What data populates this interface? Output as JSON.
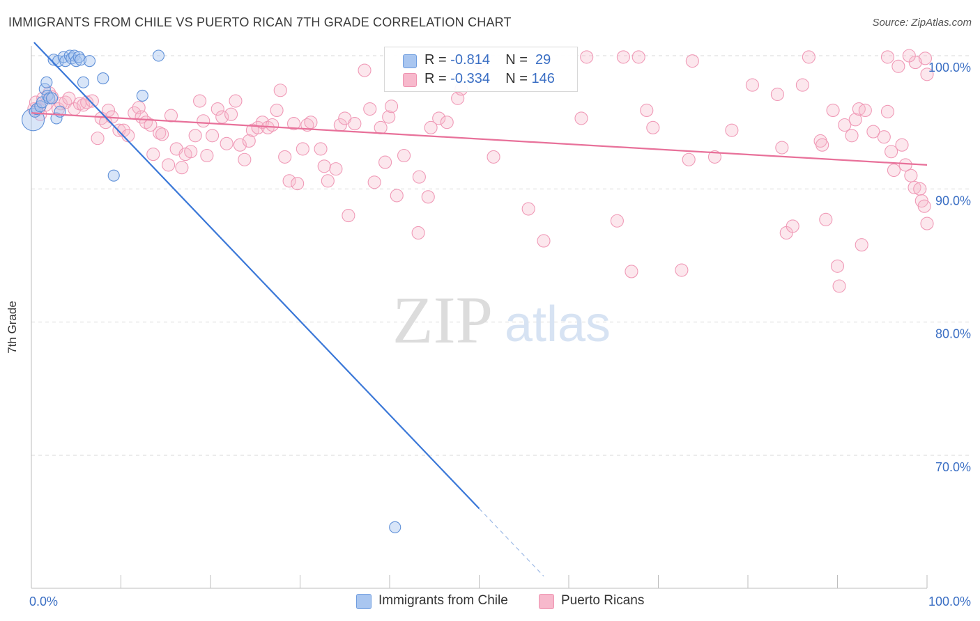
{
  "title": "IMMIGRANTS FROM CHILE VS PUERTO RICAN 7TH GRADE CORRELATION CHART",
  "source": "Source: ZipAtlas.com",
  "watermark": {
    "zip": "ZIP",
    "atlas": "atlas"
  },
  "legend": {
    "rows": [
      {
        "r_label": "R = ",
        "r_value": "-0.814",
        "n_label": "N = ",
        "n_value": "29",
        "color": "#a9c6f0"
      },
      {
        "r_label": "R = ",
        "r_value": "-0.334",
        "n_label": "N = ",
        "n_value": "146",
        "color": "#f7b9cc"
      }
    ]
  },
  "bottom_legend": [
    {
      "label": "Immigrants from Chile",
      "color": "#a9c6f0"
    },
    {
      "label": "Puerto Ricans",
      "color": "#f7b9cc"
    }
  ],
  "chart_data": {
    "type": "scatter",
    "ylabel": "7th Grade",
    "xlim": [
      0,
      100
    ],
    "ylim": [
      60.5,
      101.5
    ],
    "x_tick_labels": [
      "0.0%",
      "100.0%"
    ],
    "y_ticks": [
      70,
      80,
      90,
      100
    ],
    "y_tick_labels": [
      "70.0%",
      "80.0%",
      "90.0%",
      "100.0%"
    ],
    "grid": "horizontal dashed",
    "series": [
      {
        "name": "Immigrants from Chile",
        "color": "#7aa6e6",
        "line_color": "#3b78d8",
        "r": -0.814,
        "n": 29,
        "trend": {
          "x0": 0.3,
          "y0": 101.0,
          "x1": 50.0,
          "y1": 66.0,
          "dash_to_x": 57.2
        },
        "points": [
          [
            0.2,
            95.2
          ],
          [
            0.4,
            95.8
          ],
          [
            0.6,
            96.0
          ],
          [
            1.0,
            96.2
          ],
          [
            1.2,
            96.5
          ],
          [
            1.5,
            97.5
          ],
          [
            1.7,
            98.0
          ],
          [
            1.8,
            97.0
          ],
          [
            2.0,
            96.8
          ],
          [
            2.3,
            96.8
          ],
          [
            2.5,
            99.7
          ],
          [
            2.8,
            95.3
          ],
          [
            3.0,
            99.6
          ],
          [
            3.2,
            95.8
          ],
          [
            3.6,
            99.9
          ],
          [
            3.8,
            99.6
          ],
          [
            4.3,
            100.0
          ],
          [
            4.5,
            99.8
          ],
          [
            4.8,
            100.0
          ],
          [
            5.0,
            99.6
          ],
          [
            5.3,
            99.9
          ],
          [
            5.5,
            99.7
          ],
          [
            5.8,
            98.0
          ],
          [
            6.5,
            99.6
          ],
          [
            8.0,
            98.3
          ],
          [
            9.2,
            91.0
          ],
          [
            12.4,
            97.0
          ],
          [
            14.2,
            100.0
          ],
          [
            40.6,
            64.6
          ]
        ]
      },
      {
        "name": "Puerto Ricans",
        "color": "#f4a8bf",
        "line_color": "#e8719a",
        "r": -0.334,
        "n": 146,
        "trend": {
          "x0": 0.0,
          "y0": 95.7,
          "x1": 100.0,
          "y1": 91.8
        },
        "points": [
          [
            0.3,
            96.0
          ],
          [
            0.5,
            96.5
          ],
          [
            0.8,
            96.0
          ],
          [
            1.0,
            95.6
          ],
          [
            1.3,
            96.8
          ],
          [
            1.6,
            96.3
          ],
          [
            2.0,
            97.2
          ],
          [
            2.3,
            96.9
          ],
          [
            3.0,
            96.0
          ],
          [
            3.3,
            96.4
          ],
          [
            3.8,
            96.5
          ],
          [
            4.2,
            96.8
          ],
          [
            4.8,
            96.0
          ],
          [
            5.4,
            96.4
          ],
          [
            5.8,
            96.3
          ],
          [
            6.2,
            96.5
          ],
          [
            6.8,
            96.6
          ],
          [
            7.4,
            93.8
          ],
          [
            7.8,
            95.3
          ],
          [
            8.3,
            95.0
          ],
          [
            8.6,
            95.9
          ],
          [
            9.0,
            95.4
          ],
          [
            9.8,
            94.4
          ],
          [
            10.3,
            94.4
          ],
          [
            10.8,
            94.0
          ],
          [
            11.5,
            95.7
          ],
          [
            12.0,
            96.1
          ],
          [
            12.3,
            95.4
          ],
          [
            12.8,
            95.0
          ],
          [
            13.3,
            94.8
          ],
          [
            13.6,
            92.6
          ],
          [
            14.3,
            94.2
          ],
          [
            14.6,
            94.1
          ],
          [
            15.3,
            91.8
          ],
          [
            15.6,
            95.5
          ],
          [
            16.2,
            93.0
          ],
          [
            16.8,
            91.6
          ],
          [
            17.2,
            92.6
          ],
          [
            17.8,
            92.8
          ],
          [
            18.3,
            94.0
          ],
          [
            18.8,
            96.6
          ],
          [
            19.2,
            95.1
          ],
          [
            19.6,
            92.5
          ],
          [
            20.2,
            94.0
          ],
          [
            20.8,
            96.0
          ],
          [
            21.3,
            95.4
          ],
          [
            21.8,
            93.4
          ],
          [
            22.3,
            95.6
          ],
          [
            22.8,
            96.6
          ],
          [
            23.3,
            93.3
          ],
          [
            23.8,
            92.2
          ],
          [
            24.3,
            93.6
          ],
          [
            24.7,
            94.4
          ],
          [
            25.3,
            94.6
          ],
          [
            25.8,
            95.0
          ],
          [
            26.4,
            94.6
          ],
          [
            26.9,
            94.8
          ],
          [
            27.4,
            95.9
          ],
          [
            27.8,
            97.4
          ],
          [
            28.3,
            92.4
          ],
          [
            28.8,
            90.6
          ],
          [
            29.3,
            94.9
          ],
          [
            29.7,
            90.4
          ],
          [
            30.3,
            93.0
          ],
          [
            30.8,
            94.8
          ],
          [
            31.2,
            95.0
          ],
          [
            32.3,
            93.0
          ],
          [
            32.7,
            91.7
          ],
          [
            33.1,
            90.6
          ],
          [
            34.0,
            91.5
          ],
          [
            34.5,
            94.8
          ],
          [
            35.0,
            95.3
          ],
          [
            35.4,
            88.0
          ],
          [
            36.1,
            94.9
          ],
          [
            37.2,
            98.9
          ],
          [
            37.8,
            96.0
          ],
          [
            38.3,
            90.5
          ],
          [
            39.0,
            94.6
          ],
          [
            39.5,
            92.0
          ],
          [
            39.9,
            95.4
          ],
          [
            40.2,
            96.2
          ],
          [
            40.8,
            89.5
          ],
          [
            41.6,
            92.5
          ],
          [
            43.2,
            86.7
          ],
          [
            43.3,
            90.9
          ],
          [
            44.3,
            89.4
          ],
          [
            44.6,
            94.6
          ],
          [
            45.5,
            95.3
          ],
          [
            46.4,
            95.0
          ],
          [
            47.6,
            96.8
          ],
          [
            48.0,
            97.5
          ],
          [
            50.1,
            99.5
          ],
          [
            51.6,
            92.4
          ],
          [
            55.5,
            88.5
          ],
          [
            57.2,
            86.1
          ],
          [
            61.4,
            95.3
          ],
          [
            62.0,
            99.9
          ],
          [
            65.4,
            87.6
          ],
          [
            66.1,
            99.9
          ],
          [
            67.0,
            83.8
          ],
          [
            67.8,
            99.9
          ],
          [
            68.7,
            95.9
          ],
          [
            69.4,
            94.6
          ],
          [
            72.6,
            83.9
          ],
          [
            73.4,
            92.2
          ],
          [
            73.8,
            99.6
          ],
          [
            76.3,
            92.4
          ],
          [
            78.2,
            94.4
          ],
          [
            80.5,
            97.8
          ],
          [
            83.3,
            97.1
          ],
          [
            83.8,
            93.1
          ],
          [
            84.3,
            86.7
          ],
          [
            85.0,
            87.2
          ],
          [
            86.1,
            97.8
          ],
          [
            86.8,
            99.9
          ],
          [
            88.1,
            93.6
          ],
          [
            88.3,
            93.3
          ],
          [
            88.7,
            87.7
          ],
          [
            89.5,
            95.9
          ],
          [
            90.0,
            84.2
          ],
          [
            90.2,
            82.7
          ],
          [
            90.8,
            94.8
          ],
          [
            91.6,
            94.0
          ],
          [
            92.0,
            95.2
          ],
          [
            92.4,
            96.0
          ],
          [
            92.7,
            85.8
          ],
          [
            93.1,
            95.9
          ],
          [
            94.0,
            94.3
          ],
          [
            95.2,
            93.9
          ],
          [
            95.6,
            95.8
          ],
          [
            96.0,
            92.8
          ],
          [
            96.3,
            91.4
          ],
          [
            97.2,
            93.3
          ],
          [
            97.6,
            91.8
          ],
          [
            98.2,
            91.0
          ],
          [
            98.6,
            90.1
          ],
          [
            99.2,
            90.0
          ],
          [
            99.4,
            89.1
          ],
          [
            99.7,
            88.7
          ],
          [
            100.0,
            87.4
          ],
          [
            100.0,
            98.6
          ],
          [
            99.8,
            99.8
          ],
          [
            98.7,
            99.5
          ],
          [
            98.0,
            100.0
          ],
          [
            96.8,
            99.2
          ],
          [
            95.6,
            99.9
          ]
        ]
      }
    ]
  }
}
